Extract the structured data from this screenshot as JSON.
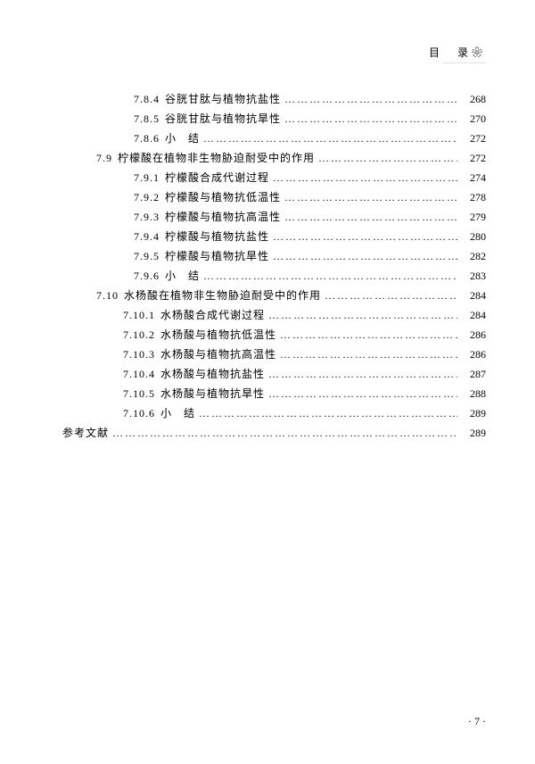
{
  "header": {
    "label": "目　录",
    "ornament": "❀"
  },
  "toc": [
    {
      "indent": "indent-3",
      "num": "7.8.4",
      "title": "谷胱甘肽与植物抗盐性",
      "page": "268"
    },
    {
      "indent": "indent-3",
      "num": "7.8.5",
      "title": "谷胱甘肽与植物抗旱性",
      "page": "270"
    },
    {
      "indent": "indent-3",
      "num": "7.8.6",
      "title": "小　结",
      "page": "272"
    },
    {
      "indent": "indent-2",
      "num": "7.9",
      "title": "柠檬酸在植物非生物胁迫耐受中的作用",
      "page": "272"
    },
    {
      "indent": "indent-3",
      "num": "7.9.1",
      "title": "柠檬酸合成代谢过程",
      "page": "274"
    },
    {
      "indent": "indent-3",
      "num": "7.9.2",
      "title": "柠檬酸与植物抗低温性",
      "page": "278"
    },
    {
      "indent": "indent-3",
      "num": "7.9.3",
      "title": "柠檬酸与植物抗高温性",
      "page": "279"
    },
    {
      "indent": "indent-3",
      "num": "7.9.4",
      "title": "柠檬酸与植物抗盐性",
      "page": "280"
    },
    {
      "indent": "indent-3",
      "num": "7.9.5",
      "title": "柠檬酸与植物抗旱性",
      "page": "282"
    },
    {
      "indent": "indent-3",
      "num": "7.9.6",
      "title": "小　结",
      "page": "283"
    },
    {
      "indent": "indent-2",
      "num": "7.10",
      "title": "水杨酸在植物非生物胁迫耐受中的作用",
      "page": "284"
    },
    {
      "indent": "indent-3w",
      "num": "7.10.1",
      "title": "水杨酸合成代谢过程",
      "page": "284"
    },
    {
      "indent": "indent-3w",
      "num": "7.10.2",
      "title": "水杨酸与植物抗低温性",
      "page": "286"
    },
    {
      "indent": "indent-3w",
      "num": "7.10.3",
      "title": "水杨酸与植物抗高温性",
      "page": "286"
    },
    {
      "indent": "indent-3w",
      "num": "7.10.4",
      "title": "水杨酸与植物抗盐性",
      "page": "287"
    },
    {
      "indent": "indent-3w",
      "num": "7.10.5",
      "title": "水杨酸与植物抗旱性",
      "page": "288"
    },
    {
      "indent": "indent-3w",
      "num": "7.10.6",
      "title": "小　结",
      "page": "289"
    },
    {
      "indent": "indent-1",
      "num": "",
      "title": "参考文献",
      "page": "289"
    }
  ],
  "footer": {
    "page_display": "· 7 ·"
  }
}
